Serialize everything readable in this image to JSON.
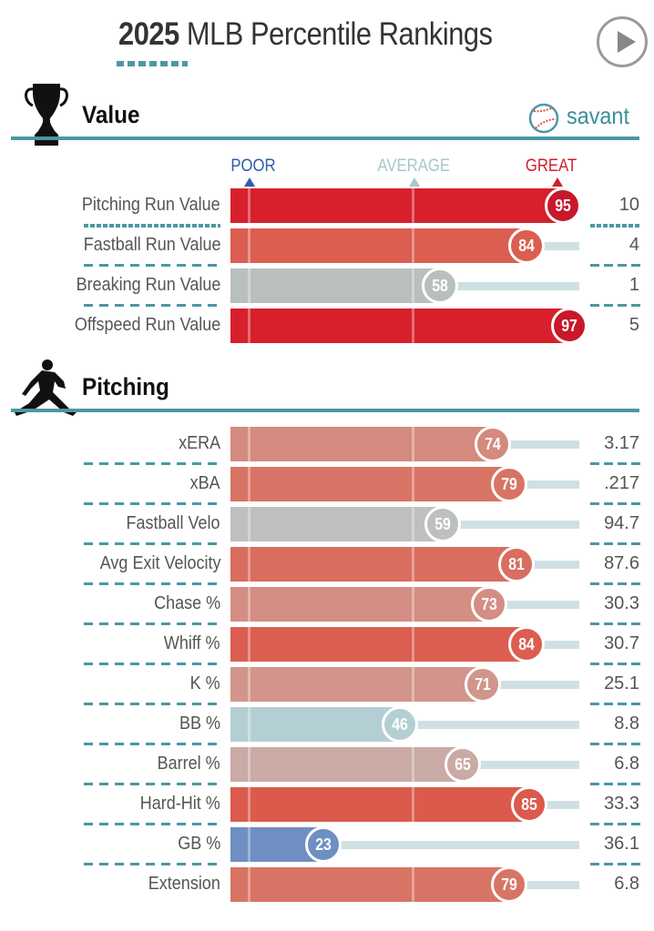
{
  "header": {
    "year": "2025",
    "title_rest": "MLB Percentile Rankings",
    "play_icon": "play-icon"
  },
  "brand": {
    "name": "savant",
    "icon": "baseball-icon"
  },
  "scale_labels": {
    "poor": "POOR",
    "average": "AVERAGE",
    "great": "GREAT",
    "colors": {
      "poor": "#2f5ea8",
      "average": "#a9c6cc",
      "great": "#d0202e"
    }
  },
  "chart_data": {
    "type": "bar",
    "title": "2025 MLB Percentile Rankings",
    "xlim": [
      0,
      100
    ],
    "markers": {
      "poor": 0,
      "average": 50,
      "great": 100
    },
    "sections": [
      {
        "name": "Value",
        "icon": "trophy-icon",
        "rows": [
          {
            "label": "Pitching Run Value",
            "percentile": 95,
            "stat": "10",
            "color": "#d7202c"
          },
          {
            "label": "Fastball Run Value",
            "percentile": 84,
            "stat": "4",
            "color": "#db5e50"
          },
          {
            "label": "Breaking Run Value",
            "percentile": 58,
            "stat": "1",
            "color": "#b9bfbf"
          },
          {
            "label": "Offspeed Run Value",
            "percentile": 97,
            "stat": "5",
            "color": "#d7202c"
          }
        ]
      },
      {
        "name": "Pitching",
        "icon": "pitcher-icon",
        "rows": [
          {
            "label": "xERA",
            "percentile": 74,
            "stat": "3.17",
            "color": "#d48a7e"
          },
          {
            "label": "xBA",
            "percentile": 79,
            "stat": ".217",
            "color": "#d87465"
          },
          {
            "label": "Fastball Velo",
            "percentile": 59,
            "stat": "94.7",
            "color": "#bec0c0"
          },
          {
            "label": "Avg Exit Velocity",
            "percentile": 81,
            "stat": "87.6",
            "color": "#d96e60"
          },
          {
            "label": "Chase %",
            "percentile": 73,
            "stat": "30.3",
            "color": "#d48e83"
          },
          {
            "label": "Whiff %",
            "percentile": 84,
            "stat": "30.7",
            "color": "#db5e50"
          },
          {
            "label": "K %",
            "percentile": 71,
            "stat": "25.1",
            "color": "#d2958b"
          },
          {
            "label": "BB %",
            "percentile": 46,
            "stat": "8.8",
            "color": "#b4cfd3"
          },
          {
            "label": "Barrel %",
            "percentile": 65,
            "stat": "6.8",
            "color": "#c9aaa4"
          },
          {
            "label": "Hard-Hit %",
            "percentile": 85,
            "stat": "33.3",
            "color": "#db5a4c"
          },
          {
            "label": "GB %",
            "percentile": 23,
            "stat": "36.1",
            "color": "#6f8fc2"
          },
          {
            "label": "Extension",
            "percentile": 79,
            "stat": "6.8",
            "color": "#d87465"
          }
        ]
      }
    ]
  }
}
